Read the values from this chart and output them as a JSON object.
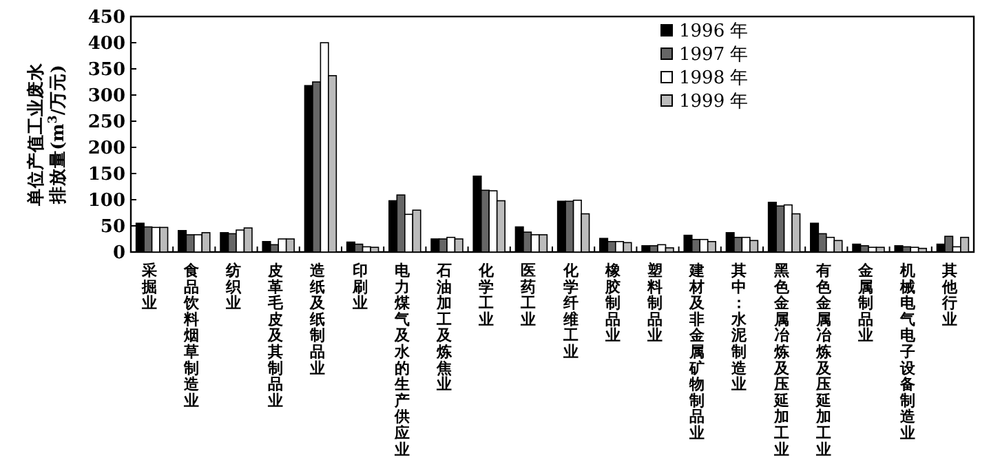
{
  "chart_data": {
    "type": "bar",
    "ylabel": "单位产值工业废水排放量(m$^{3}$/万元)",
    "categories": [
      "采掘业",
      "食品饮料烟草制造业",
      "纺织业",
      "皮革毛皮及其制品业",
      "造纸及纸制品业",
      "印刷业",
      "电力煤气及水的生产供应业",
      "石油加工及炼焦业",
      "化学工业",
      "医药工业",
      "化学纤维工业",
      "橡胶制品业",
      "塑料制品业",
      "建材及非金属矿物制品业",
      "其中：水泥制造业",
      "黑色金属冶炼及压延加工业",
      "有色金属冶炼及压延加工业",
      "金属制品业",
      "机械电气电子设备制造业",
      "其他行业"
    ],
    "series": [
      {
        "name": "1996 年",
        "color": "#000000",
        "values": [
          55,
          41,
          37,
          20,
          318,
          19,
          98,
          25,
          145,
          48,
          97,
          26,
          12,
          32,
          37,
          95,
          55,
          15,
          12,
          15
        ]
      },
      {
        "name": "1997 年",
        "color": "#666666",
        "values": [
          48,
          33,
          35,
          14,
          325,
          15,
          109,
          25,
          118,
          38,
          97,
          20,
          12,
          24,
          28,
          88,
          35,
          12,
          10,
          30
        ]
      },
      {
        "name": "1998 年",
        "color": "#ffffff",
        "values": [
          47,
          33,
          42,
          25,
          400,
          10,
          72,
          28,
          117,
          33,
          99,
          20,
          14,
          24,
          28,
          90,
          28,
          9,
          9,
          10
        ]
      },
      {
        "name": "1999 年",
        "color": "#bbbbbb",
        "values": [
          47,
          37,
          46,
          25,
          337,
          9,
          80,
          25,
          98,
          33,
          73,
          18,
          8,
          20,
          22,
          73,
          22,
          9,
          7,
          28
        ]
      }
    ],
    "ylim": [
      0,
      450
    ],
    "yticks": [
      0,
      50,
      100,
      150,
      200,
      250,
      300,
      350,
      400,
      450
    ],
    "legend": "top"
  }
}
